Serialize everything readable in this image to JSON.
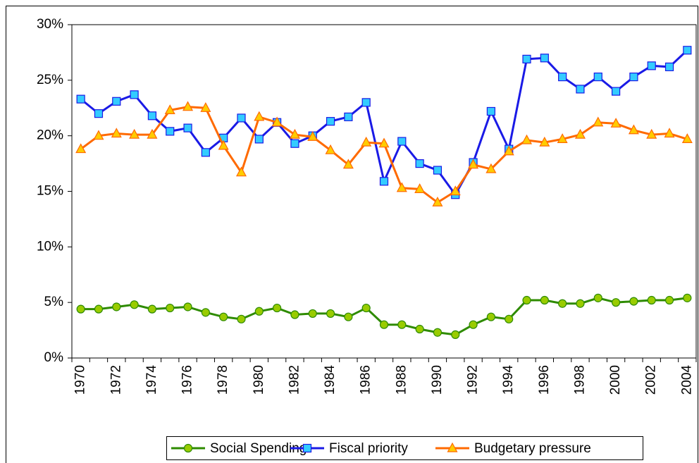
{
  "chart_data": {
    "type": "line",
    "categories": [
      "1970",
      null,
      "1972",
      null,
      "1974",
      null,
      "1976",
      null,
      "1978",
      null,
      "1980",
      null,
      "1982",
      null,
      "1984",
      null,
      "1986",
      null,
      "1988",
      null,
      "1990",
      null,
      "1992",
      null,
      "1994",
      null,
      "1996",
      null,
      "1998",
      null,
      "2000",
      null,
      "2002",
      null,
      "2004"
    ],
    "ylim": [
      0,
      30
    ],
    "yticks": [
      {
        "value": 0,
        "label": "0%"
      },
      {
        "value": 5,
        "label": "5%"
      },
      {
        "value": 10,
        "label": "10%"
      },
      {
        "value": 15,
        "label": "15%"
      },
      {
        "value": 20,
        "label": "20%"
      },
      {
        "value": 25,
        "label": "25%"
      },
      {
        "value": 30,
        "label": "30%"
      }
    ],
    "series": [
      {
        "name": "Social Spending",
        "color": "#2e8b00",
        "marker": "circle",
        "marker_color": "#99cc00",
        "values": [
          4.4,
          4.4,
          4.6,
          4.8,
          4.4,
          4.5,
          4.6,
          4.1,
          3.7,
          3.5,
          4.2,
          4.5,
          3.9,
          4.0,
          4.0,
          3.7,
          4.5,
          3.0,
          3.0,
          2.6,
          2.3,
          2.1,
          3.0,
          3.7,
          3.5,
          5.2,
          5.2,
          4.9,
          4.9,
          5.4,
          5.0,
          5.1,
          5.2,
          5.2,
          5.4
        ]
      },
      {
        "name": "Fiscal priority",
        "color": "#1a1ae6",
        "marker": "square",
        "marker_color": "#33ccff",
        "values": [
          23.3,
          22.0,
          23.1,
          23.7,
          21.8,
          20.4,
          20.7,
          18.5,
          19.8,
          21.6,
          19.7,
          21.2,
          19.3,
          20.0,
          21.3,
          21.7,
          23.0,
          15.9,
          19.5,
          17.5,
          16.9,
          14.7,
          17.6,
          22.2,
          18.8,
          26.9,
          27.0,
          25.3,
          24.2,
          25.3,
          24.0,
          25.3,
          26.3,
          26.2,
          27.7
        ]
      },
      {
        "name": "Budgetary pressure",
        "color": "#ff6a00",
        "marker": "triangle",
        "marker_color": "#ffcc00",
        "values": [
          18.8,
          20.0,
          20.2,
          20.1,
          20.1,
          22.3,
          22.6,
          22.5,
          19.1,
          16.7,
          21.7,
          21.2,
          20.1,
          19.9,
          18.7,
          17.4,
          19.4,
          19.3,
          15.3,
          15.2,
          14.0,
          15.0,
          17.4,
          17.0,
          18.6,
          19.6,
          19.4,
          19.7,
          20.1,
          21.2,
          21.1,
          20.5,
          20.1,
          20.2,
          19.7
        ]
      }
    ]
  }
}
